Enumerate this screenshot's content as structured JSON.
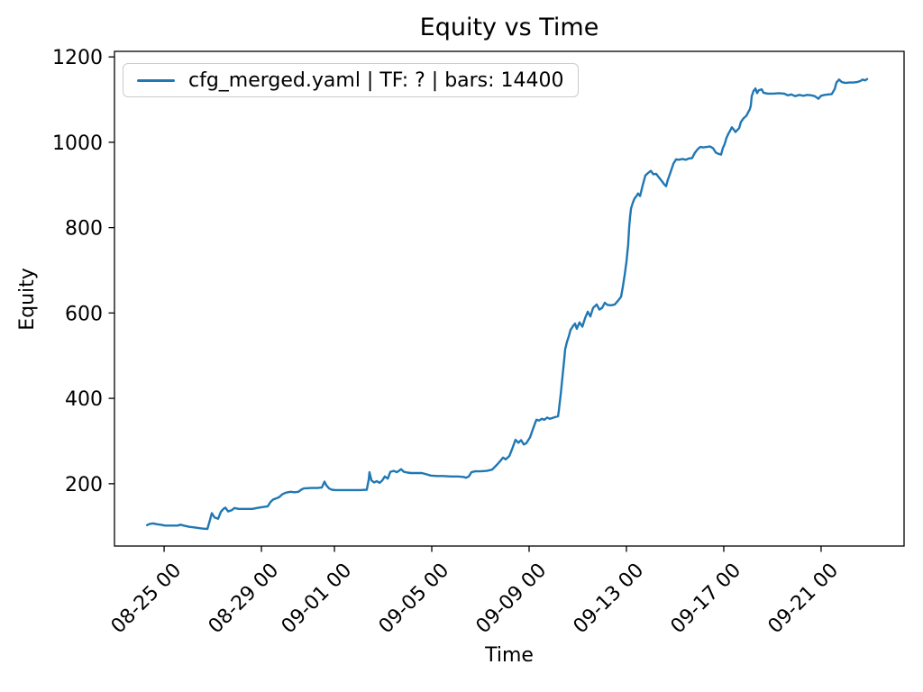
{
  "figure": {
    "title": "Equity vs Time",
    "xlabel": "Time",
    "ylabel": "Equity",
    "legend": {
      "label": "cfg_merged.yaml | TF: ? | bars: 14400"
    }
  },
  "colors": {
    "line": "#1f77b4",
    "axes": "#000000",
    "legend_border": "#cccccc",
    "background": "#ffffff"
  },
  "chart_data": {
    "type": "line",
    "title": "Equity vs Time",
    "xlabel": "Time",
    "ylabel": "Equity",
    "grid": false,
    "legend_position": "upper left",
    "legend_entries": [
      "cfg_merged.yaml | TF: ? | bars: 14400"
    ],
    "line_color": "#1f77b4",
    "line_width": 2.4,
    "x_unit": "days (0 = 08-24 00:00)",
    "xlim": [
      -1.04,
      31.41
    ],
    "ylim": [
      54,
      1213
    ],
    "y_ticks": [
      200,
      400,
      600,
      800,
      1000,
      1200
    ],
    "x_ticks": [
      {
        "t": 1,
        "label": "08-25 00"
      },
      {
        "t": 5,
        "label": "08-29 00"
      },
      {
        "t": 8,
        "label": "09-01 00"
      },
      {
        "t": 12,
        "label": "09-05 00"
      },
      {
        "t": 16,
        "label": "09-09 00"
      },
      {
        "t": 20,
        "label": "09-13 00"
      },
      {
        "t": 24,
        "label": "09-17 00"
      },
      {
        "t": 28,
        "label": "09-21 00"
      }
    ],
    "series": [
      {
        "name": "cfg_merged.yaml | TF: ? | bars: 14400",
        "points": [
          [
            0.3,
            103
          ],
          [
            0.41,
            106
          ],
          [
            0.56,
            107
          ],
          [
            0.7,
            105
          ],
          [
            0.85,
            104
          ],
          [
            1.04,
            102
          ],
          [
            1.3,
            102
          ],
          [
            1.56,
            102
          ],
          [
            1.67,
            104
          ],
          [
            1.81,
            102
          ],
          [
            2.04,
            99
          ],
          [
            2.3,
            97
          ],
          [
            2.56,
            95
          ],
          [
            2.78,
            94
          ],
          [
            2.89,
            116
          ],
          [
            2.96,
            131
          ],
          [
            3.07,
            121
          ],
          [
            3.22,
            118
          ],
          [
            3.33,
            134
          ],
          [
            3.44,
            141
          ],
          [
            3.52,
            144
          ],
          [
            3.63,
            135
          ],
          [
            3.78,
            138
          ],
          [
            3.89,
            143
          ],
          [
            4.07,
            141
          ],
          [
            4.33,
            141
          ],
          [
            4.63,
            141
          ],
          [
            4.81,
            143
          ],
          [
            5.0,
            145
          ],
          [
            5.26,
            147
          ],
          [
            5.37,
            157
          ],
          [
            5.48,
            163
          ],
          [
            5.63,
            166
          ],
          [
            5.74,
            169
          ],
          [
            5.85,
            175
          ],
          [
            6.0,
            179
          ],
          [
            6.19,
            181
          ],
          [
            6.37,
            180
          ],
          [
            6.52,
            181
          ],
          [
            6.63,
            186
          ],
          [
            6.74,
            189
          ],
          [
            7.04,
            190
          ],
          [
            7.3,
            190
          ],
          [
            7.48,
            191
          ],
          [
            7.59,
            205
          ],
          [
            7.67,
            196
          ],
          [
            7.78,
            189
          ],
          [
            7.89,
            186
          ],
          [
            8.04,
            185
          ],
          [
            8.33,
            185
          ],
          [
            8.7,
            185
          ],
          [
            9.07,
            185
          ],
          [
            9.33,
            186
          ],
          [
            9.41,
            210
          ],
          [
            9.44,
            227
          ],
          [
            9.52,
            208
          ],
          [
            9.63,
            203
          ],
          [
            9.74,
            206
          ],
          [
            9.85,
            202
          ],
          [
            9.96,
            207
          ],
          [
            10.07,
            217
          ],
          [
            10.19,
            212
          ],
          [
            10.3,
            228
          ],
          [
            10.44,
            230
          ],
          [
            10.56,
            227
          ],
          [
            10.67,
            231
          ],
          [
            10.74,
            234
          ],
          [
            10.85,
            228
          ],
          [
            11.0,
            226
          ],
          [
            11.15,
            225
          ],
          [
            11.37,
            225
          ],
          [
            11.59,
            225
          ],
          [
            11.78,
            222
          ],
          [
            11.96,
            219
          ],
          [
            12.22,
            218
          ],
          [
            12.48,
            218
          ],
          [
            12.78,
            217
          ],
          [
            13.07,
            217
          ],
          [
            13.3,
            216
          ],
          [
            13.41,
            214
          ],
          [
            13.52,
            217
          ],
          [
            13.63,
            227
          ],
          [
            13.78,
            229
          ],
          [
            14.0,
            229
          ],
          [
            14.26,
            230
          ],
          [
            14.48,
            233
          ],
          [
            14.67,
            244
          ],
          [
            14.78,
            251
          ],
          [
            14.93,
            261
          ],
          [
            15.04,
            257
          ],
          [
            15.19,
            265
          ],
          [
            15.3,
            281
          ],
          [
            15.44,
            303
          ],
          [
            15.56,
            296
          ],
          [
            15.67,
            302
          ],
          [
            15.78,
            292
          ],
          [
            15.89,
            295
          ],
          [
            16.04,
            309
          ],
          [
            16.19,
            333
          ],
          [
            16.3,
            350
          ],
          [
            16.41,
            348
          ],
          [
            16.52,
            352
          ],
          [
            16.63,
            350
          ],
          [
            16.74,
            355
          ],
          [
            16.85,
            352
          ],
          [
            16.96,
            354
          ],
          [
            17.07,
            356
          ],
          [
            17.19,
            358
          ],
          [
            17.22,
            370
          ],
          [
            17.3,
            410
          ],
          [
            17.37,
            450
          ],
          [
            17.44,
            490
          ],
          [
            17.48,
            515
          ],
          [
            17.56,
            533
          ],
          [
            17.63,
            545
          ],
          [
            17.7,
            560
          ],
          [
            17.81,
            570
          ],
          [
            17.89,
            575
          ],
          [
            17.96,
            563
          ],
          [
            18.07,
            578
          ],
          [
            18.19,
            568
          ],
          [
            18.3,
            588
          ],
          [
            18.41,
            603
          ],
          [
            18.52,
            592
          ],
          [
            18.63,
            612
          ],
          [
            18.78,
            620
          ],
          [
            18.89,
            608
          ],
          [
            19.0,
            612
          ],
          [
            19.11,
            624
          ],
          [
            19.22,
            619
          ],
          [
            19.37,
            618
          ],
          [
            19.52,
            620
          ],
          [
            19.67,
            630
          ],
          [
            19.78,
            638
          ],
          [
            19.85,
            660
          ],
          [
            19.93,
            690
          ],
          [
            20.0,
            720
          ],
          [
            20.07,
            760
          ],
          [
            20.11,
            800
          ],
          [
            20.15,
            825
          ],
          [
            20.19,
            845
          ],
          [
            20.26,
            858
          ],
          [
            20.33,
            868
          ],
          [
            20.41,
            874
          ],
          [
            20.48,
            880
          ],
          [
            20.56,
            874
          ],
          [
            20.67,
            900
          ],
          [
            20.78,
            922
          ],
          [
            20.89,
            928
          ],
          [
            21.0,
            933
          ],
          [
            21.11,
            925
          ],
          [
            21.22,
            926
          ],
          [
            21.33,
            918
          ],
          [
            21.44,
            910
          ],
          [
            21.56,
            901
          ],
          [
            21.63,
            897
          ],
          [
            21.7,
            912
          ],
          [
            21.81,
            929
          ],
          [
            21.93,
            950
          ],
          [
            22.04,
            960
          ],
          [
            22.15,
            959
          ],
          [
            22.3,
            961
          ],
          [
            22.44,
            959
          ],
          [
            22.56,
            962
          ],
          [
            22.7,
            963
          ],
          [
            22.81,
            975
          ],
          [
            22.93,
            984
          ],
          [
            23.04,
            989
          ],
          [
            23.15,
            988
          ],
          [
            23.3,
            989
          ],
          [
            23.44,
            990
          ],
          [
            23.56,
            986
          ],
          [
            23.67,
            976
          ],
          [
            23.78,
            973
          ],
          [
            23.89,
            971
          ],
          [
            23.96,
            986
          ],
          [
            24.04,
            996
          ],
          [
            24.11,
            1010
          ],
          [
            24.19,
            1020
          ],
          [
            24.26,
            1027
          ],
          [
            24.33,
            1035
          ],
          [
            24.41,
            1030
          ],
          [
            24.48,
            1024
          ],
          [
            24.56,
            1029
          ],
          [
            24.63,
            1033
          ],
          [
            24.7,
            1047
          ],
          [
            24.81,
            1056
          ],
          [
            24.93,
            1062
          ],
          [
            25.0,
            1070
          ],
          [
            25.07,
            1077
          ],
          [
            25.11,
            1085
          ],
          [
            25.15,
            1108
          ],
          [
            25.22,
            1120
          ],
          [
            25.3,
            1126
          ],
          [
            25.37,
            1115
          ],
          [
            25.44,
            1122
          ],
          [
            25.56,
            1124
          ],
          [
            25.63,
            1116
          ],
          [
            25.81,
            1114
          ],
          [
            26.04,
            1114
          ],
          [
            26.26,
            1115
          ],
          [
            26.48,
            1114
          ],
          [
            26.63,
            1110
          ],
          [
            26.78,
            1112
          ],
          [
            26.93,
            1108
          ],
          [
            27.11,
            1111
          ],
          [
            27.26,
            1109
          ],
          [
            27.44,
            1111
          ],
          [
            27.59,
            1110
          ],
          [
            27.74,
            1108
          ],
          [
            27.89,
            1102
          ],
          [
            28.0,
            1109
          ],
          [
            28.15,
            1111
          ],
          [
            28.3,
            1112
          ],
          [
            28.44,
            1113
          ],
          [
            28.56,
            1125
          ],
          [
            28.63,
            1140
          ],
          [
            28.74,
            1147
          ],
          [
            28.85,
            1141
          ],
          [
            29.0,
            1139
          ],
          [
            29.15,
            1140
          ],
          [
            29.33,
            1140
          ],
          [
            29.48,
            1141
          ],
          [
            29.63,
            1144
          ],
          [
            29.7,
            1147
          ],
          [
            29.81,
            1145
          ],
          [
            29.89,
            1148
          ]
        ]
      }
    ]
  }
}
